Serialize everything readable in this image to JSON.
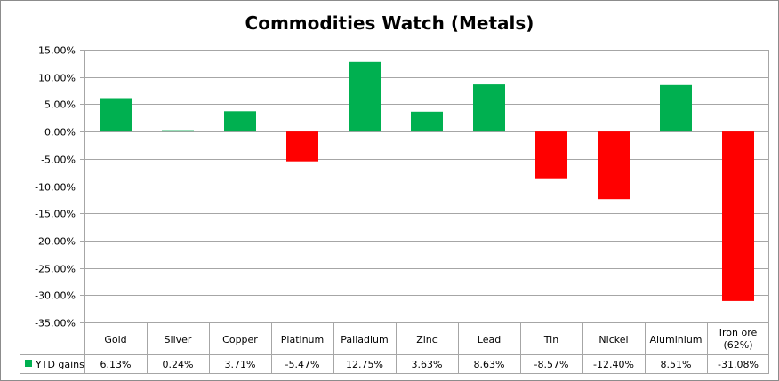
{
  "chart_data": {
    "type": "bar",
    "title": "Commodities Watch (Metals)",
    "categories": [
      "Gold",
      "Silver",
      "Copper",
      "Platinum",
      "Palladium",
      "Zinc",
      "Lead",
      "Tin",
      "Nickel",
      "Aluminium",
      "Iron ore (62%)"
    ],
    "series": [
      {
        "name": "YTD gains",
        "values": [
          6.13,
          0.24,
          3.71,
          -5.47,
          12.75,
          3.63,
          8.63,
          -8.57,
          -12.4,
          8.51,
          -31.08
        ],
        "labels": [
          "6.13%",
          "0.24%",
          "3.71%",
          "-5.47%",
          "12.75%",
          "3.63%",
          "8.63%",
          "-8.57%",
          "-12.40%",
          "8.51%",
          "-31.08%"
        ]
      }
    ],
    "ylim": [
      -35,
      15
    ],
    "yticks": [
      15,
      10,
      5,
      0,
      -5,
      -10,
      -15,
      -20,
      -25,
      -30,
      -35
    ],
    "ytick_labels": [
      "15.00%",
      "10.00%",
      "5.00%",
      "0.00%",
      "-5.00%",
      "-10.00%",
      "-15.00%",
      "-20.00%",
      "-25.00%",
      "-30.00%",
      "-35.00%"
    ],
    "grid": true,
    "legend": "data-table",
    "colors": {
      "positive": "#00B050",
      "negative": "#FF0000",
      "grid": "#A6A6A6",
      "border": "#8C8C8C"
    }
  }
}
